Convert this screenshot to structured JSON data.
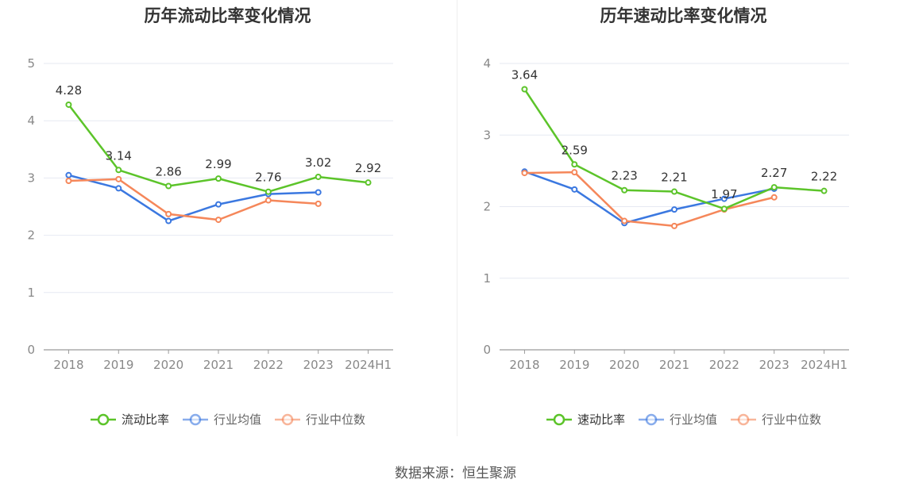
{
  "source_text": "数据来源：恒生聚源",
  "chart_data": [
    {
      "type": "line",
      "title": "历年流动比率变化情况",
      "categories": [
        "2018",
        "2019",
        "2020",
        "2021",
        "2022",
        "2023",
        "2024H1"
      ],
      "ylim": [
        0,
        5
      ],
      "yticks": [
        "0",
        "1",
        "2",
        "3",
        "4",
        "5"
      ],
      "grid": true,
      "legend_position": "bottom",
      "series": [
        {
          "name": "流动比率",
          "color": "#5cc42a",
          "values": [
            4.28,
            3.14,
            2.86,
            2.99,
            2.76,
            3.02,
            2.92
          ],
          "labels": [
            "4.28",
            "3.14",
            "2.86",
            "2.99",
            "2.76",
            "3.02",
            "2.92"
          ]
        },
        {
          "name": "行业均值",
          "color": "#3b78e0",
          "values": [
            3.05,
            2.82,
            2.25,
            2.54,
            2.72,
            2.75,
            null
          ]
        },
        {
          "name": "行业中位数",
          "color": "#f5875a",
          "values": [
            2.95,
            2.98,
            2.37,
            2.27,
            2.61,
            2.55,
            null
          ]
        }
      ]
    },
    {
      "type": "line",
      "title": "历年速动比率变化情况",
      "categories": [
        "2018",
        "2019",
        "2020",
        "2021",
        "2022",
        "2023",
        "2024H1"
      ],
      "ylim": [
        0,
        4
      ],
      "yticks": [
        "0",
        "1",
        "2",
        "3",
        "4"
      ],
      "grid": true,
      "legend_position": "bottom",
      "series": [
        {
          "name": "速动比率",
          "color": "#5cc42a",
          "values": [
            3.64,
            2.59,
            2.23,
            2.21,
            1.97,
            2.27,
            2.22
          ],
          "labels": [
            "3.64",
            "2.59",
            "2.23",
            "2.21",
            "1.97",
            "2.27",
            "2.22"
          ]
        },
        {
          "name": "行业均值",
          "color": "#3b78e0",
          "values": [
            2.49,
            2.24,
            1.77,
            1.96,
            2.11,
            2.25,
            null
          ]
        },
        {
          "name": "行业中位数",
          "color": "#f5875a",
          "values": [
            2.47,
            2.48,
            1.8,
            1.73,
            1.96,
            2.13,
            null
          ]
        }
      ]
    }
  ]
}
